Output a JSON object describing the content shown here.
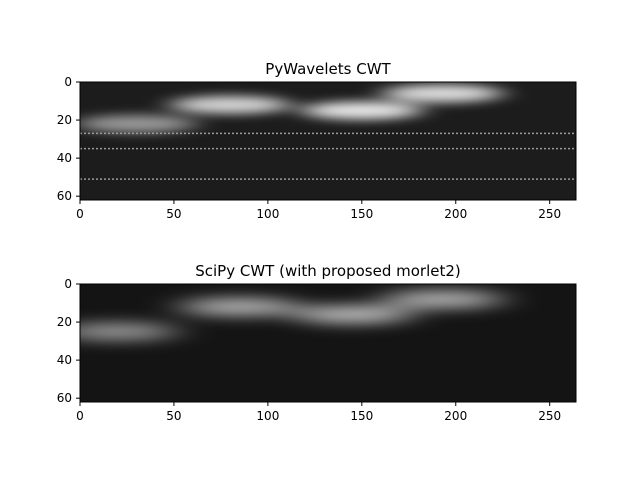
{
  "chart_data": [
    {
      "type": "heatmap",
      "title": "PyWavelets CWT",
      "xlabel": "",
      "ylabel": "",
      "xlim": [
        0,
        264
      ],
      "ylim": [
        62,
        0
      ],
      "x_ticks": [
        "0",
        "50",
        "100",
        "150",
        "200",
        "250"
      ],
      "y_ticks": [
        "0",
        "20",
        "40",
        "60"
      ],
      "colormap": "gray",
      "bright_bands": [
        {
          "x_center": 80,
          "y_center": 12,
          "intensity": 0.85
        },
        {
          "x_center": 150,
          "y_center": 15,
          "intensity": 0.95
        },
        {
          "x_center": 193,
          "y_center": 6,
          "intensity": 0.9
        },
        {
          "x_center": 30,
          "y_center": 22,
          "intensity": 0.55
        }
      ],
      "artifact_rows": [
        27,
        35,
        51
      ]
    },
    {
      "type": "heatmap",
      "title": "SciPy CWT (with proposed morlet2)",
      "xlabel": "",
      "ylabel": "",
      "xlim": [
        0,
        264
      ],
      "ylim": [
        62,
        0
      ],
      "x_ticks": [
        "0",
        "50",
        "100",
        "150",
        "200",
        "250"
      ],
      "y_ticks": [
        "0",
        "20",
        "40",
        "60"
      ],
      "colormap": "gray",
      "bright_bands": [
        {
          "x_center": 85,
          "y_center": 12,
          "intensity": 0.7
        },
        {
          "x_center": 145,
          "y_center": 16,
          "intensity": 0.75
        },
        {
          "x_center": 193,
          "y_center": 8,
          "intensity": 0.7
        },
        {
          "x_center": 20,
          "y_center": 25,
          "intensity": 0.55
        }
      ],
      "artifact_rows": []
    }
  ]
}
